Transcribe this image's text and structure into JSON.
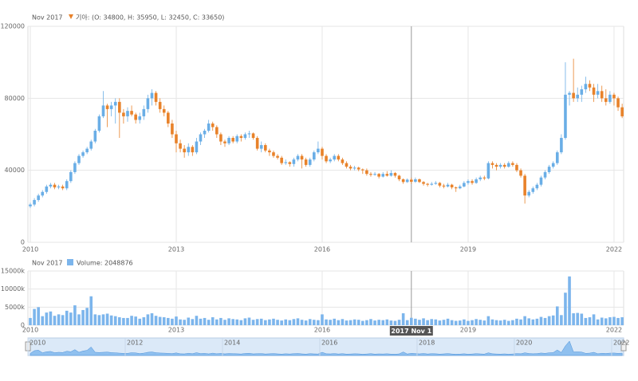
{
  "chart_data": {
    "type": "candlestick",
    "date_label": "Nov 2017",
    "legend_text": "기아: (O: 34800, H: 35950, L: 32450, C: 33650)",
    "volume_legend_text": "Volume: 2048876",
    "cursor_label": "2017 Nov 1",
    "up_color": "#6aaee6",
    "down_color": "#e8822a",
    "volume_color": "#7cb5ec",
    "grid": true,
    "xlim": [
      "2010-01",
      "2022-03"
    ],
    "xticks": [
      {
        "value": "2010-01",
        "label": "2010"
      },
      {
        "value": "2013-01",
        "label": "2013"
      },
      {
        "value": "2016-01",
        "label": "2016"
      },
      {
        "value": "2019-01",
        "label": "2019"
      },
      {
        "value": "2022-01",
        "label": "2022"
      }
    ],
    "navigator_xticks": [
      {
        "value": "2010-01",
        "label": "2010"
      },
      {
        "value": "2012-01",
        "label": "2012"
      },
      {
        "value": "2014-01",
        "label": "2014"
      },
      {
        "value": "2016-01",
        "label": "2016"
      },
      {
        "value": "2018-01",
        "label": "2018"
      },
      {
        "value": "2020-01",
        "label": "2020"
      },
      {
        "value": "2022-01",
        "label": "2022"
      }
    ],
    "ylim": [
      0,
      120000
    ],
    "yticks": [
      0,
      40000,
      80000,
      120000
    ],
    "volume_ylim": [
      0,
      15000000
    ],
    "volume_yticks": [
      0,
      {
        "value": 5000000,
        "label": "5000k"
      },
      {
        "value": 10000000,
        "label": "10000k"
      },
      {
        "value": 15000000,
        "label": "15000k"
      }
    ],
    "cursor_x": "2017-11",
    "x": [
      "2010-01",
      "2010-02",
      "2010-03",
      "2010-04",
      "2010-05",
      "2010-06",
      "2010-07",
      "2010-08",
      "2010-09",
      "2010-10",
      "2010-11",
      "2010-12",
      "2011-01",
      "2011-02",
      "2011-03",
      "2011-04",
      "2011-05",
      "2011-06",
      "2011-07",
      "2011-08",
      "2011-09",
      "2011-10",
      "2011-11",
      "2011-12",
      "2012-01",
      "2012-02",
      "2012-03",
      "2012-04",
      "2012-05",
      "2012-06",
      "2012-07",
      "2012-08",
      "2012-09",
      "2012-10",
      "2012-11",
      "2012-12",
      "2013-01",
      "2013-02",
      "2013-03",
      "2013-04",
      "2013-05",
      "2013-06",
      "2013-07",
      "2013-08",
      "2013-09",
      "2013-10",
      "2013-11",
      "2013-12",
      "2014-01",
      "2014-02",
      "2014-03",
      "2014-04",
      "2014-05",
      "2014-06",
      "2014-07",
      "2014-08",
      "2014-09",
      "2014-10",
      "2014-11",
      "2014-12",
      "2015-01",
      "2015-02",
      "2015-03",
      "2015-04",
      "2015-05",
      "2015-06",
      "2015-07",
      "2015-08",
      "2015-09",
      "2015-10",
      "2015-11",
      "2015-12",
      "2016-01",
      "2016-02",
      "2016-03",
      "2016-04",
      "2016-05",
      "2016-06",
      "2016-07",
      "2016-08",
      "2016-09",
      "2016-10",
      "2016-11",
      "2016-12",
      "2017-01",
      "2017-02",
      "2017-03",
      "2017-04",
      "2017-05",
      "2017-06",
      "2017-07",
      "2017-08",
      "2017-09",
      "2017-10",
      "2017-11",
      "2017-12",
      "2018-01",
      "2018-02",
      "2018-03",
      "2018-04",
      "2018-05",
      "2018-06",
      "2018-07",
      "2018-08",
      "2018-09",
      "2018-10",
      "2018-11",
      "2018-12",
      "2019-01",
      "2019-02",
      "2019-03",
      "2019-04",
      "2019-05",
      "2019-06",
      "2019-07",
      "2019-08",
      "2019-09",
      "2019-10",
      "2019-11",
      "2019-12",
      "2020-01",
      "2020-02",
      "2020-03",
      "2020-04",
      "2020-05",
      "2020-06",
      "2020-07",
      "2020-08",
      "2020-09",
      "2020-10",
      "2020-11",
      "2020-12",
      "2021-01",
      "2021-02",
      "2021-03",
      "2021-04",
      "2021-05",
      "2021-06",
      "2021-07",
      "2021-08",
      "2021-09",
      "2021-10",
      "2021-11",
      "2021-12",
      "2022-01",
      "2022-02",
      "2022-03"
    ],
    "ohlc": [
      [
        20000,
        22000,
        19000,
        21000
      ],
      [
        21000,
        24500,
        20000,
        23500
      ],
      [
        23500,
        27000,
        22500,
        26000
      ],
      [
        26000,
        29000,
        25000,
        28000
      ],
      [
        28000,
        32000,
        27000,
        31000
      ],
      [
        31000,
        33000,
        30000,
        32000
      ],
      [
        32000,
        33000,
        29500,
        30500
      ],
      [
        30500,
        32000,
        29500,
        31000
      ],
      [
        31000,
        32000,
        29000,
        30000
      ],
      [
        30000,
        35000,
        29000,
        34000
      ],
      [
        34000,
        40000,
        33000,
        39000
      ],
      [
        39000,
        45000,
        38000,
        44000
      ],
      [
        44000,
        49000,
        43000,
        48000
      ],
      [
        48000,
        51000,
        47000,
        50000
      ],
      [
        50000,
        53000,
        49000,
        52000
      ],
      [
        52000,
        57000,
        51000,
        56000
      ],
      [
        56000,
        63000,
        55000,
        62000
      ],
      [
        62000,
        71000,
        61000,
        70000
      ],
      [
        70000,
        84000,
        69000,
        76000
      ],
      [
        76000,
        77000,
        64000,
        74000
      ],
      [
        74000,
        78000,
        70000,
        76000
      ],
      [
        76000,
        80000,
        66000,
        78000
      ],
      [
        78000,
        80000,
        58000,
        72000
      ],
      [
        72000,
        74000,
        66000,
        70000
      ],
      [
        70000,
        75000,
        67000,
        73000
      ],
      [
        73000,
        76000,
        70000,
        71000
      ],
      [
        71000,
        72000,
        66000,
        68000
      ],
      [
        68000,
        72000,
        66000,
        70000
      ],
      [
        70000,
        76000,
        68000,
        74000
      ],
      [
        74000,
        82000,
        72000,
        80000
      ],
      [
        80000,
        85000,
        76000,
        83000
      ],
      [
        83000,
        84000,
        76000,
        78000
      ],
      [
        78000,
        80000,
        72000,
        74000
      ],
      [
        74000,
        76000,
        70000,
        72000
      ],
      [
        72000,
        73000,
        64000,
        66000
      ],
      [
        66000,
        68000,
        58000,
        60000
      ],
      [
        60000,
        62000,
        50000,
        55000
      ],
      [
        55000,
        57000,
        50000,
        52000
      ],
      [
        52000,
        54000,
        47000,
        50000
      ],
      [
        50000,
        55000,
        48000,
        53000
      ],
      [
        53000,
        54000,
        48000,
        50000
      ],
      [
        50000,
        58000,
        49000,
        56000
      ],
      [
        56000,
        61000,
        54000,
        60000
      ],
      [
        60000,
        63000,
        58000,
        62000
      ],
      [
        62000,
        68000,
        61000,
        66000
      ],
      [
        66000,
        67000,
        62000,
        64000
      ],
      [
        64000,
        65000,
        58000,
        60000
      ],
      [
        60000,
        61000,
        54000,
        56000
      ],
      [
        56000,
        57000,
        53000,
        55000
      ],
      [
        55000,
        59000,
        54000,
        58000
      ],
      [
        58000,
        59000,
        55000,
        56000
      ],
      [
        56000,
        60000,
        55000,
        59000
      ],
      [
        59000,
        60000,
        56000,
        58000
      ],
      [
        58000,
        61000,
        57000,
        60000
      ],
      [
        60000,
        62000,
        58000,
        60500
      ],
      [
        60500,
        61000,
        57000,
        58000
      ],
      [
        58000,
        59000,
        51000,
        52000
      ],
      [
        52000,
        56000,
        50000,
        54000
      ],
      [
        54000,
        55000,
        50000,
        51000
      ],
      [
        51000,
        52000,
        48000,
        50000
      ],
      [
        50000,
        51000,
        47000,
        48000
      ],
      [
        48000,
        49000,
        46000,
        47000
      ],
      [
        47000,
        48000,
        43000,
        44000
      ],
      [
        44000,
        46000,
        43000,
        44500
      ],
      [
        44500,
        45000,
        42000,
        43500
      ],
      [
        43500,
        47000,
        42000,
        46000
      ],
      [
        46000,
        49000,
        45000,
        48000
      ],
      [
        48000,
        49000,
        41000,
        46000
      ],
      [
        46000,
        47000,
        42000,
        43000
      ],
      [
        43000,
        47000,
        42000,
        46000
      ],
      [
        46000,
        51000,
        45000,
        50000
      ],
      [
        50000,
        56000,
        49000,
        52000
      ],
      [
        52000,
        53000,
        46000,
        48000
      ],
      [
        48000,
        49000,
        44000,
        45000
      ],
      [
        45000,
        47000,
        44000,
        46000
      ],
      [
        46000,
        49000,
        45000,
        48000
      ],
      [
        48000,
        49000,
        45000,
        46000
      ],
      [
        46000,
        47000,
        43000,
        44000
      ],
      [
        44000,
        45000,
        41000,
        42000
      ],
      [
        42000,
        43000,
        40000,
        41000
      ],
      [
        41000,
        42500,
        40000,
        41500
      ],
      [
        41500,
        42000,
        39500,
        40500
      ],
      [
        40500,
        41000,
        38000,
        40000
      ],
      [
        40000,
        41000,
        37000,
        38000
      ],
      [
        38000,
        39000,
        36500,
        37500
      ],
      [
        37500,
        39000,
        37000,
        38000
      ],
      [
        38000,
        38500,
        35500,
        36500
      ],
      [
        36500,
        39000,
        36000,
        38000
      ],
      [
        38000,
        39500,
        36500,
        37000
      ],
      [
        37000,
        40000,
        36500,
        38500
      ],
      [
        38500,
        39000,
        36000,
        37000
      ],
      [
        37000,
        37500,
        34000,
        35000
      ],
      [
        35000,
        35500,
        32500,
        33500
      ],
      [
        33500,
        35500,
        33000,
        34800
      ],
      [
        34800,
        35950,
        32450,
        33650
      ],
      [
        33650,
        36000,
        33000,
        35000
      ],
      [
        35000,
        35500,
        33000,
        33500
      ],
      [
        33500,
        34000,
        31500,
        32500
      ],
      [
        32500,
        33000,
        31000,
        32000
      ],
      [
        32000,
        33500,
        31500,
        32500
      ],
      [
        32500,
        34000,
        32000,
        33000
      ],
      [
        33000,
        33500,
        30500,
        31500
      ],
      [
        31500,
        32500,
        30000,
        31000
      ],
      [
        31000,
        33000,
        30500,
        32000
      ],
      [
        32000,
        32500,
        29500,
        30500
      ],
      [
        30500,
        31000,
        28000,
        30000
      ],
      [
        30000,
        32000,
        29500,
        31000
      ],
      [
        31000,
        34000,
        30500,
        33000
      ],
      [
        33000,
        35000,
        32000,
        34000
      ],
      [
        34000,
        35000,
        32000,
        33000
      ],
      [
        33000,
        36000,
        32500,
        35000
      ],
      [
        35000,
        37000,
        34000,
        36000
      ],
      [
        36000,
        37000,
        34500,
        35500
      ],
      [
        35500,
        45000,
        35000,
        44000
      ],
      [
        44000,
        45000,
        41000,
        43000
      ],
      [
        43000,
        44000,
        40000,
        42000
      ],
      [
        42000,
        44000,
        41000,
        43000
      ],
      [
        43000,
        44000,
        41000,
        42000
      ],
      [
        42000,
        45000,
        41500,
        44000
      ],
      [
        44000,
        45000,
        42000,
        43000
      ],
      [
        43000,
        44000,
        39000,
        40000
      ],
      [
        40000,
        41000,
        36000,
        37000
      ],
      [
        37000,
        38000,
        21500,
        26000
      ],
      [
        26000,
        29000,
        25000,
        28000
      ],
      [
        28000,
        31000,
        27000,
        30000
      ],
      [
        30000,
        33000,
        29000,
        32000
      ],
      [
        32000,
        37000,
        31000,
        36000
      ],
      [
        36000,
        40000,
        35000,
        39000
      ],
      [
        39000,
        43000,
        38000,
        42000
      ],
      [
        42000,
        45000,
        41000,
        44000
      ],
      [
        44000,
        51000,
        43000,
        50000
      ],
      [
        50000,
        60000,
        49000,
        58000
      ],
      [
        58000,
        100000,
        57000,
        82000
      ],
      [
        82000,
        84000,
        76000,
        83000
      ],
      [
        83000,
        102000,
        78000,
        80000
      ],
      [
        80000,
        86000,
        78000,
        82000
      ],
      [
        82000,
        87000,
        78000,
        85000
      ],
      [
        85000,
        92000,
        83000,
        88000
      ],
      [
        88000,
        90000,
        84000,
        86000
      ],
      [
        86000,
        88000,
        78000,
        82000
      ],
      [
        82000,
        88000,
        80000,
        84000
      ],
      [
        84000,
        87000,
        78000,
        80000
      ],
      [
        80000,
        85000,
        76000,
        78000
      ],
      [
        78000,
        84000,
        77000,
        82000
      ],
      [
        82000,
        83000,
        76000,
        80000
      ],
      [
        80000,
        81000,
        73000,
        75000
      ],
      [
        75000,
        77000,
        69000,
        70000
      ]
    ],
    "volume": [
      2000000,
      4500000,
      5000000,
      2500000,
      3500000,
      3800000,
      2600000,
      3000000,
      2800000,
      4000000,
      3500000,
      5500000,
      3000000,
      4200000,
      4800000,
      8000000,
      3000000,
      2800000,
      3000000,
      3200000,
      2700000,
      2500000,
      2200000,
      2000000,
      2000000,
      2600000,
      2400000,
      1800000,
      2200000,
      3000000,
      3300000,
      2600000,
      2300000,
      2200000,
      2000000,
      1800000,
      2400000,
      1600000,
      1500000,
      2100000,
      1700000,
      2600000,
      1800000,
      2000000,
      1500000,
      2200000,
      1600000,
      2000000,
      1500000,
      1900000,
      1700000,
      1600000,
      1400000,
      1900000,
      2100000,
      1500000,
      1700000,
      1800000,
      1400000,
      1600000,
      1800000,
      1500000,
      1300000,
      1600000,
      1400000,
      1700000,
      1900000,
      1500000,
      1300000,
      1700000,
      1500000,
      1400000,
      3000000,
      1600000,
      1500000,
      1800000,
      1400000,
      1700000,
      1300000,
      1400000,
      1600000,
      1500000,
      1200000,
      1400000,
      1700000,
      1300000,
      1500000,
      1400000,
      1600000,
      1300000,
      1200000,
      1500000,
      3300000,
      1400000,
      2048876,
      1800000,
      1500000,
      1900000,
      1400000,
      1700000,
      1600000,
      1300000,
      1500000,
      1800000,
      1400000,
      1200000,
      1300000,
      1600000,
      1200000,
      1400000,
      1700000,
      1500000,
      1300000,
      2500000,
      1600000,
      1400000,
      1300000,
      1500000,
      1200000,
      1400000,
      1800000,
      1600000,
      2500000,
      1900000,
      1600000,
      1800000,
      2300000,
      2000000,
      2500000,
      2700000,
      5200000,
      2800000,
      9000000,
      13500000,
      3300000,
      3400000,
      3200000,
      2000000,
      2200000,
      3000000,
      1600000,
      2100000,
      1900000,
      2200000,
      2300000,
      2000000,
      2200000
    ]
  }
}
